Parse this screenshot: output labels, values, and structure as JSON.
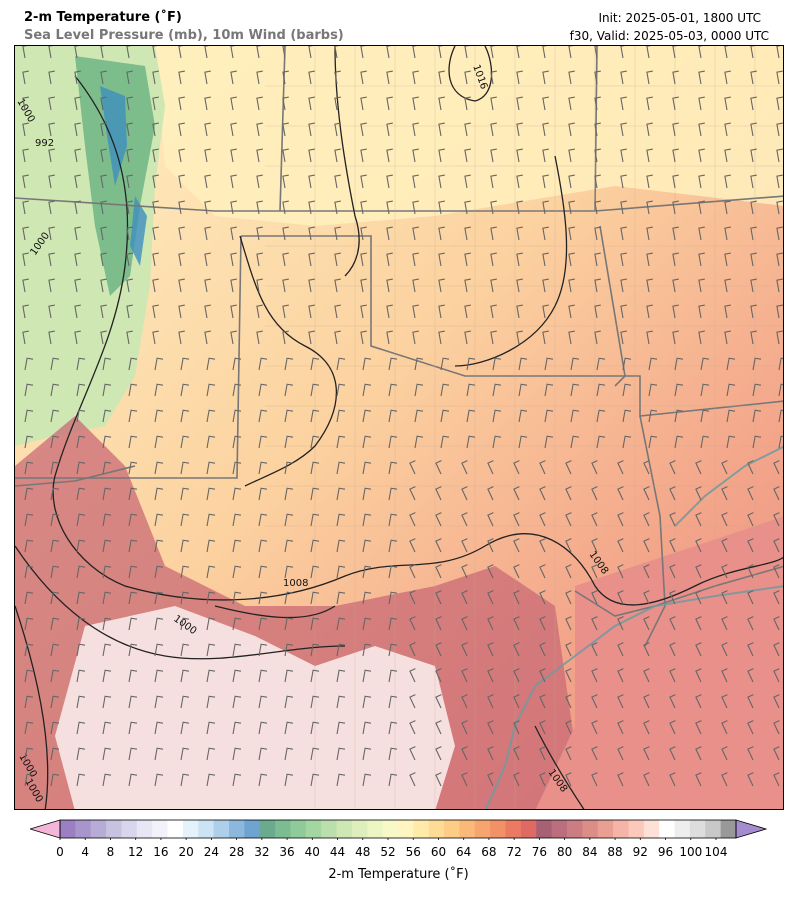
{
  "header": {
    "title": "2-m Temperature (˚F)",
    "subtitle": "Sea Level Pressure (mb), 10m Wind (barbs)",
    "init": "Init: 2025-05-01, 1800 UTC",
    "valid": "f30, Valid: 2025-05-03, 0000 UTC"
  },
  "map": {
    "isobar_labels": [
      "1016",
      "1008",
      "1008",
      "1008",
      "1000",
      "1000",
      "1000",
      "992",
      "1000",
      "1000"
    ]
  },
  "colorbar": {
    "title": "2-m Temperature (˚F)",
    "tick_labels": [
      "0",
      "4",
      "8",
      "12",
      "16",
      "20",
      "24",
      "28",
      "32",
      "36",
      "40",
      "44",
      "48",
      "52",
      "56",
      "60",
      "64",
      "68",
      "72",
      "76",
      "80",
      "84",
      "88",
      "92",
      "96",
      "100",
      "104"
    ],
    "under_color": "#f4b6d8",
    "over_color": "#a58ccf",
    "colors": [
      "#9c7fc2",
      "#a895cc",
      "#b6acd6",
      "#c6c2e0",
      "#d7d6ec",
      "#e6e6f5",
      "#f2f2fb",
      "#ffffff",
      "#e6f2fb",
      "#cbe3f3",
      "#adcfea",
      "#8db8dd",
      "#6ea4cf",
      "#6aab90",
      "#7cbc93",
      "#8fca9a",
      "#a4d6a2",
      "#badfac",
      "#cde7b5",
      "#deefbd",
      "#ecf5c4",
      "#f7f9c6",
      "#fff5c0",
      "#ffeaaa",
      "#ffdc96",
      "#fdcc85",
      "#fbb878",
      "#f7a56f",
      "#f29066",
      "#ea7a62",
      "#df6a63",
      "#a86074",
      "#bb6f7e",
      "#cc7d82",
      "#dc8d88",
      "#ea9f93",
      "#f5b4a7",
      "#fbc8bc",
      "#fde0d6",
      "#ffffff",
      "#eeeeee",
      "#dddddd",
      "#c8c8c8",
      "#999999"
    ]
  }
}
